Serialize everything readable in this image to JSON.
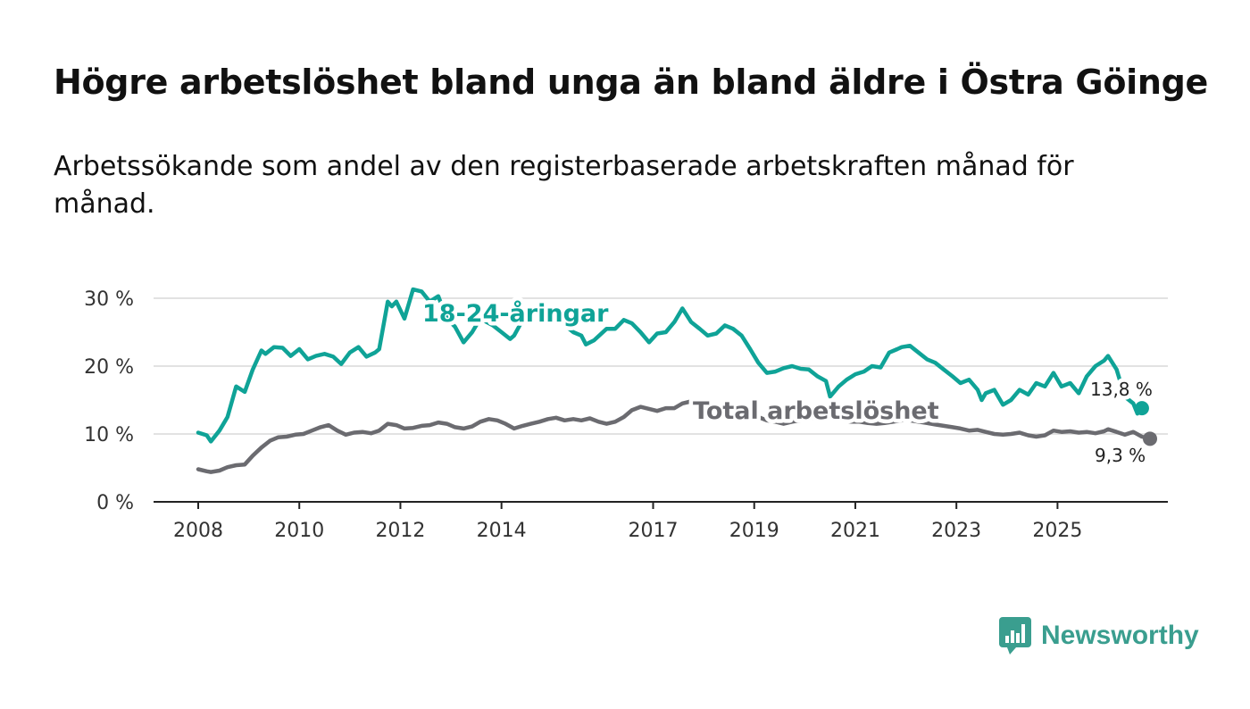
{
  "title": "Högre arbetslöshet bland unga än bland äldre i Östra Göinge",
  "subtitle": "Arbetssökande som andel av den registerbaserade arbetskraften månad för månad.",
  "brand": {
    "name": "Newsworthy",
    "icon": "newsworthy-logo-icon",
    "color": "#3a9e8f"
  },
  "chart_data": {
    "type": "line",
    "ylim": [
      0,
      30
    ],
    "xlim": [
      2008,
      2026.3
    ],
    "y_ticks": [
      {
        "value": 0,
        "label": "0 %"
      },
      {
        "value": 10,
        "label": "10 %"
      },
      {
        "value": 20,
        "label": "20 %"
      },
      {
        "value": 30,
        "label": "30 %"
      }
    ],
    "x_ticks": [
      {
        "value": 2008,
        "label": "2008"
      },
      {
        "value": 2010,
        "label": "2010"
      },
      {
        "value": 2012,
        "label": "2012"
      },
      {
        "value": 2014,
        "label": "2014"
      },
      {
        "value": 2017,
        "label": "2017"
      },
      {
        "value": 2019,
        "label": "2019"
      },
      {
        "value": 2021,
        "label": "2021"
      },
      {
        "value": 2023,
        "label": "2023"
      },
      {
        "value": 2025,
        "label": "2025"
      }
    ],
    "grid": true,
    "series": [
      {
        "name": "18-24-åringar",
        "color": "#0fa397",
        "end_label": "13,8 %",
        "points": [
          [
            2008.0,
            10.2
          ],
          [
            2008.17,
            9.8
          ],
          [
            2008.25,
            8.9
          ],
          [
            2008.42,
            10.5
          ],
          [
            2008.58,
            12.5
          ],
          [
            2008.75,
            17.0
          ],
          [
            2008.92,
            16.2
          ],
          [
            2009.08,
            19.5
          ],
          [
            2009.25,
            22.3
          ],
          [
            2009.33,
            21.8
          ],
          [
            2009.5,
            22.8
          ],
          [
            2009.67,
            22.7
          ],
          [
            2009.83,
            21.5
          ],
          [
            2010.0,
            22.5
          ],
          [
            2010.17,
            21.0
          ],
          [
            2010.33,
            21.5
          ],
          [
            2010.5,
            21.8
          ],
          [
            2010.67,
            21.4
          ],
          [
            2010.83,
            20.3
          ],
          [
            2011.0,
            22.0
          ],
          [
            2011.17,
            22.8
          ],
          [
            2011.33,
            21.4
          ],
          [
            2011.5,
            22.0
          ],
          [
            2011.58,
            22.5
          ],
          [
            2011.75,
            29.5
          ],
          [
            2011.83,
            28.8
          ],
          [
            2011.92,
            29.5
          ],
          [
            2012.08,
            27.0
          ],
          [
            2012.25,
            31.3
          ],
          [
            2012.42,
            31.0
          ],
          [
            2012.58,
            29.5
          ],
          [
            2012.75,
            30.3
          ],
          [
            2012.92,
            27.0
          ],
          [
            2013.08,
            25.8
          ],
          [
            2013.25,
            23.5
          ],
          [
            2013.42,
            25.0
          ],
          [
            2013.58,
            27.0
          ],
          [
            2013.83,
            26.0
          ],
          [
            2014.0,
            25.0
          ],
          [
            2014.17,
            24.0
          ],
          [
            2014.25,
            24.5
          ],
          [
            2014.42,
            26.8
          ],
          [
            2014.58,
            27.5
          ],
          [
            2014.75,
            28.0
          ],
          [
            2014.92,
            27.0
          ],
          [
            2015.17,
            26.5
          ],
          [
            2015.42,
            25.0
          ],
          [
            2015.58,
            24.5
          ],
          [
            2015.67,
            23.2
          ],
          [
            2015.83,
            23.8
          ],
          [
            2016.08,
            25.5
          ],
          [
            2016.25,
            25.5
          ],
          [
            2016.42,
            26.8
          ],
          [
            2016.58,
            26.3
          ],
          [
            2016.75,
            25.0
          ],
          [
            2016.92,
            23.5
          ],
          [
            2017.08,
            24.8
          ],
          [
            2017.25,
            25.0
          ],
          [
            2017.42,
            26.5
          ],
          [
            2017.58,
            28.5
          ],
          [
            2017.75,
            26.5
          ],
          [
            2017.92,
            25.5
          ],
          [
            2018.08,
            24.5
          ],
          [
            2018.25,
            24.8
          ],
          [
            2018.42,
            26.0
          ],
          [
            2018.58,
            25.5
          ],
          [
            2018.75,
            24.5
          ],
          [
            2018.92,
            22.5
          ],
          [
            2019.08,
            20.5
          ],
          [
            2019.25,
            19.0
          ],
          [
            2019.42,
            19.2
          ],
          [
            2019.58,
            19.7
          ],
          [
            2019.75,
            20.0
          ],
          [
            2019.92,
            19.6
          ],
          [
            2020.08,
            19.5
          ],
          [
            2020.25,
            18.5
          ],
          [
            2020.42,
            17.8
          ],
          [
            2020.5,
            15.5
          ],
          [
            2020.67,
            17.0
          ],
          [
            2020.83,
            18.0
          ],
          [
            2021.0,
            18.8
          ],
          [
            2021.17,
            19.2
          ],
          [
            2021.33,
            20.0
          ],
          [
            2021.5,
            19.8
          ],
          [
            2021.67,
            22.0
          ],
          [
            2021.83,
            22.5
          ],
          [
            2021.92,
            22.8
          ],
          [
            2022.08,
            23.0
          ],
          [
            2022.25,
            22.0
          ],
          [
            2022.42,
            21.0
          ],
          [
            2022.58,
            20.5
          ],
          [
            2022.75,
            19.5
          ],
          [
            2022.92,
            18.5
          ],
          [
            2023.08,
            17.5
          ],
          [
            2023.25,
            18.0
          ],
          [
            2023.42,
            16.5
          ],
          [
            2023.5,
            15.0
          ],
          [
            2023.58,
            16.0
          ],
          [
            2023.75,
            16.5
          ],
          [
            2023.92,
            14.3
          ],
          [
            2024.08,
            15.0
          ],
          [
            2024.25,
            16.5
          ],
          [
            2024.42,
            15.8
          ],
          [
            2024.58,
            17.5
          ],
          [
            2024.75,
            17.0
          ],
          [
            2024.92,
            19.0
          ],
          [
            2025.08,
            17.0
          ],
          [
            2025.25,
            17.5
          ],
          [
            2025.42,
            16.0
          ],
          [
            2025.58,
            18.5
          ],
          [
            2025.75,
            20.0
          ],
          [
            2025.92,
            20.8
          ],
          [
            2026.0,
            21.5
          ],
          [
            2026.17,
            19.5
          ],
          [
            2026.25,
            17.5
          ],
          [
            2026.33,
            15.5
          ],
          [
            2026.5,
            14.5
          ],
          [
            2026.58,
            13.0
          ],
          [
            2026.67,
            13.8
          ]
        ]
      },
      {
        "name": "Total arbetslöshet",
        "color": "#6b6b70",
        "end_label": "9,3 %",
        "points": [
          [
            2008.0,
            4.8
          ],
          [
            2008.17,
            4.5
          ],
          [
            2008.25,
            4.4
          ],
          [
            2008.42,
            4.6
          ],
          [
            2008.58,
            5.1
          ],
          [
            2008.75,
            5.4
          ],
          [
            2008.92,
            5.5
          ],
          [
            2009.08,
            6.8
          ],
          [
            2009.25,
            8.0
          ],
          [
            2009.42,
            9.0
          ],
          [
            2009.58,
            9.5
          ],
          [
            2009.75,
            9.6
          ],
          [
            2009.92,
            9.9
          ],
          [
            2010.08,
            10.0
          ],
          [
            2010.25,
            10.5
          ],
          [
            2010.42,
            11.0
          ],
          [
            2010.58,
            11.3
          ],
          [
            2010.75,
            10.5
          ],
          [
            2010.92,
            9.9
          ],
          [
            2011.08,
            10.2
          ],
          [
            2011.25,
            10.3
          ],
          [
            2011.42,
            10.1
          ],
          [
            2011.58,
            10.5
          ],
          [
            2011.75,
            11.5
          ],
          [
            2011.92,
            11.3
          ],
          [
            2012.08,
            10.8
          ],
          [
            2012.25,
            10.9
          ],
          [
            2012.42,
            11.2
          ],
          [
            2012.58,
            11.3
          ],
          [
            2012.75,
            11.7
          ],
          [
            2012.92,
            11.5
          ],
          [
            2013.08,
            11.0
          ],
          [
            2013.25,
            10.8
          ],
          [
            2013.42,
            11.1
          ],
          [
            2013.58,
            11.8
          ],
          [
            2013.75,
            12.2
          ],
          [
            2013.92,
            12.0
          ],
          [
            2014.08,
            11.5
          ],
          [
            2014.25,
            10.8
          ],
          [
            2014.42,
            11.2
          ],
          [
            2014.58,
            11.5
          ],
          [
            2014.75,
            11.8
          ],
          [
            2014.92,
            12.2
          ],
          [
            2015.08,
            12.4
          ],
          [
            2015.25,
            12.0
          ],
          [
            2015.42,
            12.2
          ],
          [
            2015.58,
            12.0
          ],
          [
            2015.75,
            12.3
          ],
          [
            2015.92,
            11.8
          ],
          [
            2016.08,
            11.5
          ],
          [
            2016.25,
            11.8
          ],
          [
            2016.42,
            12.5
          ],
          [
            2016.58,
            13.5
          ],
          [
            2016.75,
            14.0
          ],
          [
            2016.92,
            13.7
          ],
          [
            2017.08,
            13.4
          ],
          [
            2017.25,
            13.8
          ],
          [
            2017.42,
            13.8
          ],
          [
            2017.58,
            14.5
          ],
          [
            2017.75,
            14.8
          ],
          [
            2017.92,
            14.6
          ],
          [
            2018.08,
            14.3
          ],
          [
            2018.25,
            14.0
          ],
          [
            2018.42,
            13.8
          ],
          [
            2018.58,
            13.5
          ],
          [
            2018.75,
            13.0
          ],
          [
            2018.92,
            12.8
          ],
          [
            2019.08,
            12.5
          ],
          [
            2019.25,
            12.0
          ],
          [
            2019.42,
            11.8
          ],
          [
            2019.58,
            11.5
          ],
          [
            2019.75,
            11.8
          ],
          [
            2019.92,
            12.0
          ],
          [
            2020.08,
            12.2
          ],
          [
            2020.25,
            12.5
          ],
          [
            2020.42,
            12.5
          ],
          [
            2020.58,
            12.3
          ],
          [
            2020.75,
            12.0
          ],
          [
            2020.92,
            11.8
          ],
          [
            2021.08,
            11.8
          ],
          [
            2021.25,
            11.6
          ],
          [
            2021.42,
            11.5
          ],
          [
            2021.58,
            11.6
          ],
          [
            2021.75,
            11.8
          ],
          [
            2021.92,
            12.0
          ],
          [
            2022.08,
            12.0
          ],
          [
            2022.25,
            11.8
          ],
          [
            2022.42,
            11.6
          ],
          [
            2022.58,
            11.4
          ],
          [
            2022.75,
            11.2
          ],
          [
            2022.92,
            11.0
          ],
          [
            2023.08,
            10.8
          ],
          [
            2023.25,
            10.5
          ],
          [
            2023.42,
            10.6
          ],
          [
            2023.58,
            10.3
          ],
          [
            2023.75,
            10.0
          ],
          [
            2023.92,
            9.9
          ],
          [
            2024.08,
            10.0
          ],
          [
            2024.25,
            10.2
          ],
          [
            2024.42,
            9.8
          ],
          [
            2024.58,
            9.6
          ],
          [
            2024.75,
            9.8
          ],
          [
            2024.92,
            10.5
          ],
          [
            2025.08,
            10.3
          ],
          [
            2025.25,
            10.4
          ],
          [
            2025.42,
            10.2
          ],
          [
            2025.58,
            10.3
          ],
          [
            2025.75,
            10.1
          ],
          [
            2025.92,
            10.4
          ],
          [
            2026.0,
            10.7
          ],
          [
            2026.17,
            10.3
          ],
          [
            2026.33,
            9.9
          ],
          [
            2026.5,
            10.3
          ],
          [
            2026.67,
            9.6
          ],
          [
            2026.83,
            9.3
          ]
        ]
      }
    ]
  }
}
